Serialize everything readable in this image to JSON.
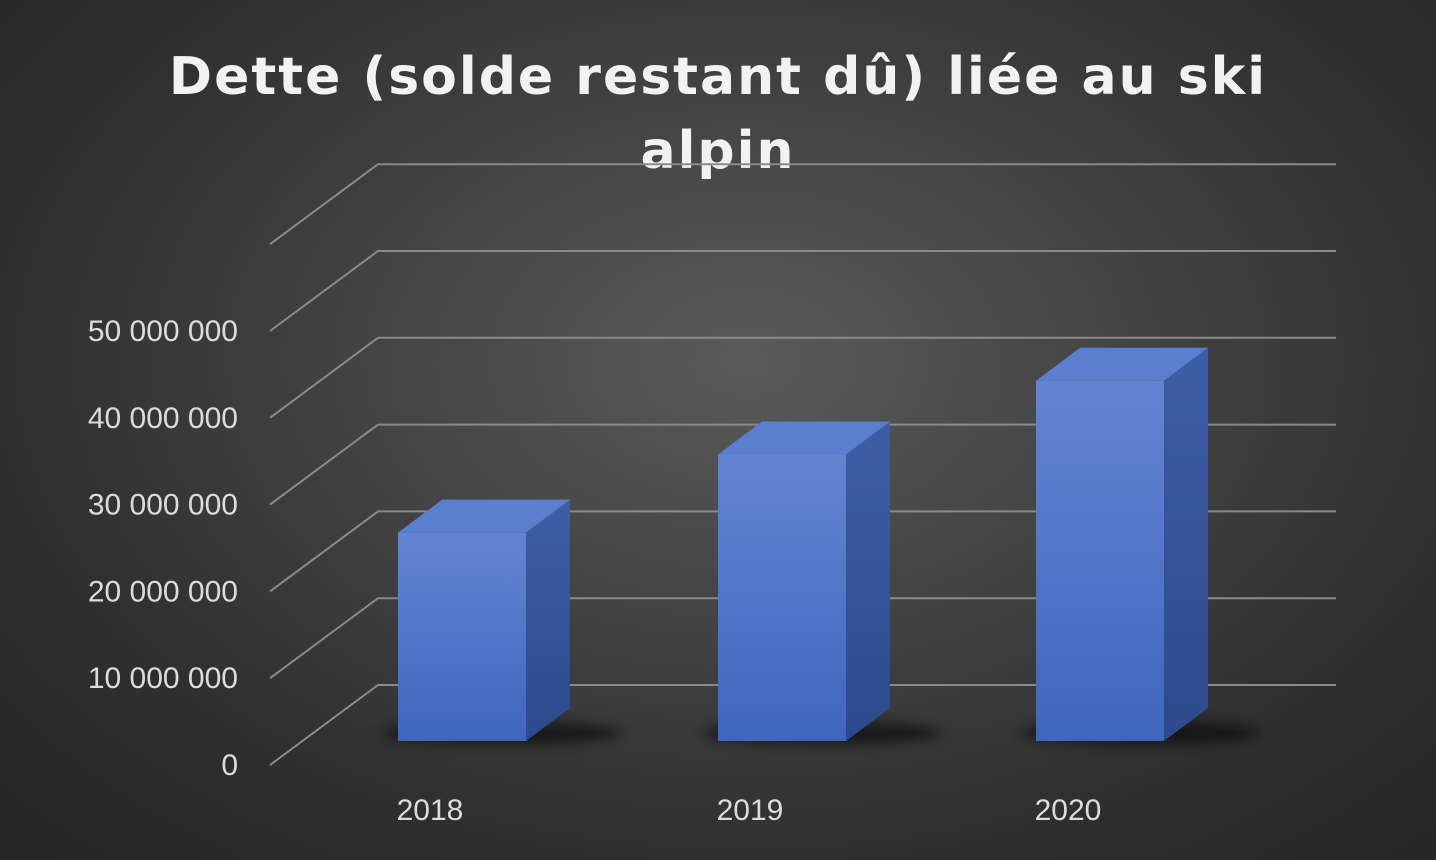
{
  "chart_data": {
    "type": "bar",
    "title": "Dette (solde restant dû) liée au ski\nalpin",
    "categories": [
      "2018",
      "2019",
      "2020"
    ],
    "series": [
      {
        "values": [
          24000000,
          33000000,
          41500000
        ]
      }
    ],
    "ylim": [
      0,
      50000000
    ],
    "y_ticks": [
      "0",
      "10 000 000",
      "20 000 000",
      "30 000 000",
      "40 000 000",
      "50 000 000"
    ],
    "grid": true,
    "legend": "none",
    "style": "3d-column",
    "colors": {
      "bar_front": "#4a72c8",
      "bar_top": "#5b7fcf",
      "bar_side": "#34549a",
      "gridline": "#8a8a8a",
      "background": "#3a3a3a",
      "text": "#dcdcdc",
      "title": "#f2f2f2"
    }
  }
}
